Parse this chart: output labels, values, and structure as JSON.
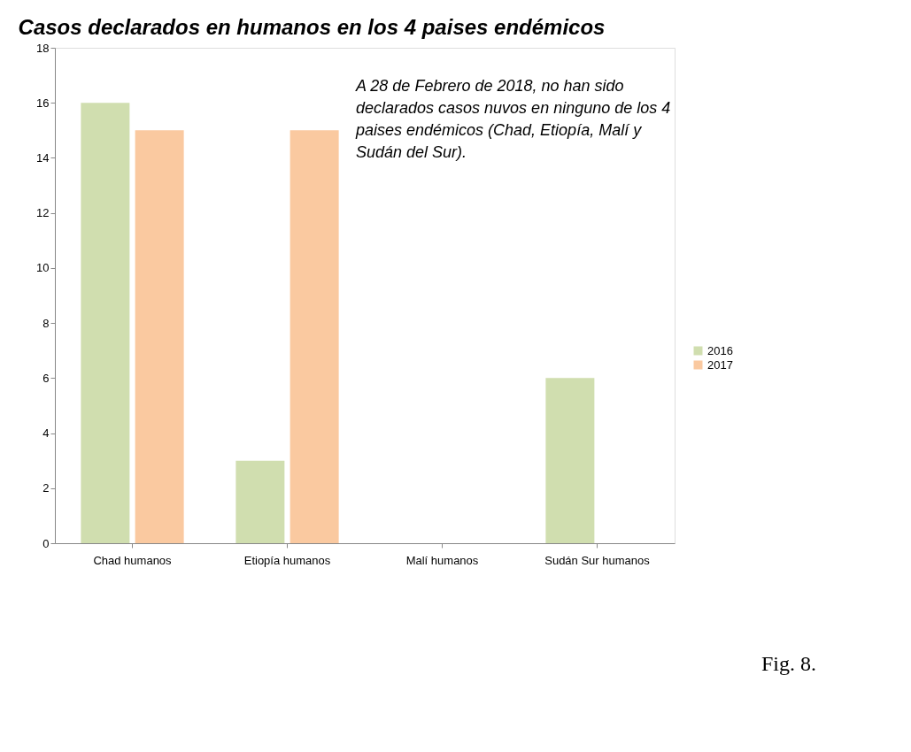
{
  "chart_data": {
    "type": "bar",
    "title": "Casos declarados en humanos en los 4 paises endémicos",
    "categories": [
      "Chad humanos",
      "Etiopía humanos",
      "Malí humanos",
      "Sudán Sur humanos"
    ],
    "series": [
      {
        "name": "2016",
        "color": "#d0deaf",
        "values": [
          16,
          3,
          0,
          6
        ]
      },
      {
        "name": "2017",
        "color": "#fac9a0",
        "values": [
          15,
          15,
          0,
          0
        ]
      }
    ],
    "ylim": [
      0,
      18
    ],
    "yticks": [
      0,
      2,
      4,
      6,
      8,
      10,
      12,
      14,
      16,
      18
    ],
    "grid": false,
    "legend": "right",
    "annotations": [
      "A 28 de Febrero de 2018, no han sido declarados casos nuvos en ninguno de los 4 paises endémicos (Chad, Etiopía, Malí y Sudán del Sur).",
      "Fig. 8."
    ]
  }
}
